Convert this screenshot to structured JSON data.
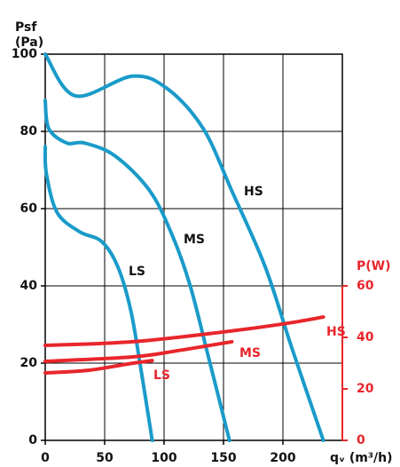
{
  "chart_data": {
    "type": "line",
    "ylabel": [
      "Psf",
      "(Pa)"
    ],
    "y2label": "P(W)",
    "xlabel": "qᵥ (m³/h)",
    "xlim": [
      0,
      250
    ],
    "xticks": [
      0,
      50,
      100,
      150,
      200
    ],
    "ylim": [
      0,
      100
    ],
    "yticks": [
      0,
      20,
      40,
      60,
      80,
      100
    ],
    "y2lim": [
      0,
      150
    ],
    "y2ticks": [
      0,
      20,
      40,
      60
    ],
    "grid": true,
    "series": [
      {
        "name": "HS",
        "color": "#1a9bc9",
        "x": [
          0,
          25.3,
          73.5,
          103,
          133,
          157,
          185,
          207,
          234
        ],
        "values": [
          100,
          89.2,
          94.3,
          91,
          80.7,
          64.6,
          45,
          24.4,
          0
        ]
      },
      {
        "name": "MS",
        "color": "#1a9bc9",
        "x": [
          0,
          3,
          18,
          33,
          59,
          88,
          107,
          122,
          137,
          155
        ],
        "values": [
          88,
          80.7,
          77,
          77,
          73.6,
          64.6,
          53,
          40,
          22,
          0
        ]
      },
      {
        "name": "LS",
        "color": "#1a9bc9",
        "x": [
          0,
          1,
          10,
          29,
          47.5,
          61,
          72,
          81,
          90
        ],
        "values": [
          76,
          69,
          59,
          54,
          51.5,
          45,
          33.6,
          17.5,
          0
        ]
      },
      {
        "name": "HS",
        "color": "#e8262b",
        "axis": "y2",
        "x": [
          0,
          73.5,
          148,
          200,
          234
        ],
        "values": [
          36.9,
          38.3,
          42,
          45.2,
          47.9
        ]
      },
      {
        "name": "MS",
        "color": "#e8262b",
        "axis": "y2",
        "x": [
          0,
          73.5,
          111,
          157
        ],
        "values": [
          30.7,
          32.4,
          34.8,
          38.3
        ]
      },
      {
        "name": "LS",
        "color": "#e8262b",
        "axis": "y2",
        "x": [
          0,
          36,
          70,
          90
        ],
        "values": [
          26.2,
          27.2,
          29.7,
          31
        ]
      }
    ]
  }
}
